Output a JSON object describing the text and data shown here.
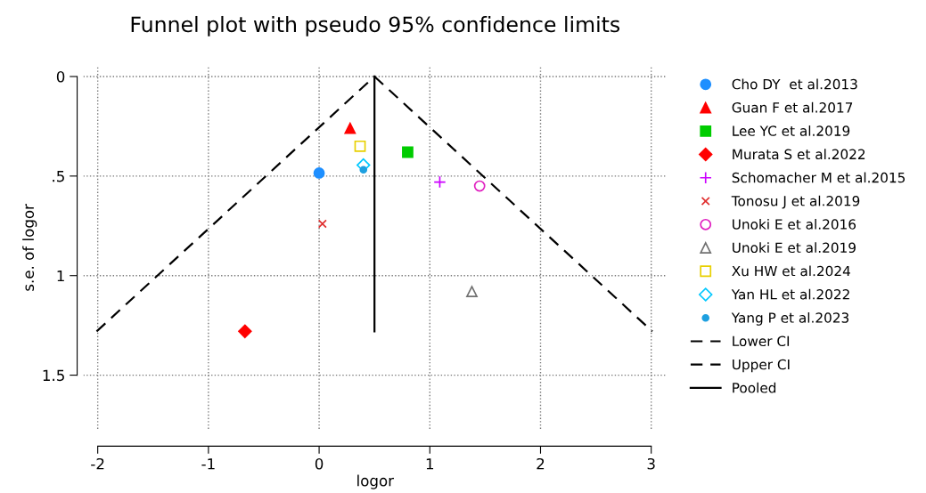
{
  "chart_data": {
    "type": "scatter",
    "title": "Funnel plot with pseudo 95% confidence limits",
    "xlabel": "logor",
    "ylabel": "s.e. of logor",
    "xlim": [
      -2.13,
      3.14
    ],
    "ylim": [
      1.77,
      -0.05
    ],
    "xticks": [
      -2,
      -1,
      0,
      1,
      2,
      3
    ],
    "yticks": [
      0,
      {
        "value": 0.5,
        "label": ".5"
      },
      1,
      1.5
    ],
    "grid": true,
    "legend": "right",
    "series": [
      {
        "name": "Cho DY  et al.2013",
        "color": "#1e8fff",
        "marker": "circle",
        "x": [
          0.0
        ],
        "values": [
          0.485
        ]
      },
      {
        "name": "Guan F et al.2017",
        "color": "#ff0000",
        "marker": "triangle",
        "x": [
          0.28
        ],
        "values": [
          0.26
        ]
      },
      {
        "name": "Lee YC et al.2019",
        "color": "#00cc00",
        "marker": "square",
        "x": [
          0.8
        ],
        "values": [
          0.38
        ]
      },
      {
        "name": "Murata S et al.2022",
        "color": "#ff0000",
        "marker": "diamond",
        "x": [
          -0.67
        ],
        "values": [
          1.28
        ]
      },
      {
        "name": "Schomacher M et al.2015",
        "color": "#cc00ff",
        "marker": "plus",
        "x": [
          1.09
        ],
        "values": [
          0.53
        ]
      },
      {
        "name": "Tonosu J et al.2019",
        "color": "#e03030",
        "marker": "cross",
        "x": [
          0.03
        ],
        "values": [
          0.74
        ]
      },
      {
        "name": "Unoki E et al.2016",
        "color": "#e020c0",
        "marker": "circle-open",
        "x": [
          1.45
        ],
        "values": [
          0.55
        ]
      },
      {
        "name": "Unoki E et al.2019",
        "color": "#707070",
        "marker": "triangle-open",
        "x": [
          1.38
        ],
        "values": [
          1.08
        ]
      },
      {
        "name": "Xu HW et al.2024",
        "color": "#e8d000",
        "marker": "square-open",
        "x": [
          0.37
        ],
        "values": [
          0.35
        ]
      },
      {
        "name": "Yan HL et al.2022",
        "color": "#00c8ff",
        "marker": "diamond-open",
        "x": [
          0.4
        ],
        "values": [
          0.445
        ]
      },
      {
        "name": "Yang P et al.2023",
        "color": "#1ea0e0",
        "marker": "dot",
        "x": [
          0.4
        ],
        "values": [
          0.468
        ]
      },
      {
        "name": "Lower CI",
        "type": "line",
        "color": "#000000",
        "line_style": "dashed",
        "x": [
          -2.01,
          0.5
        ],
        "values": [
          1.28,
          0
        ]
      },
      {
        "name": "Upper CI",
        "type": "line",
        "color": "#000000",
        "line_style": "dashed",
        "x": [
          0.5,
          3.01
        ],
        "values": [
          0,
          1.28
        ]
      },
      {
        "name": "Pooled",
        "type": "line",
        "color": "#000000",
        "line_style": "solid",
        "x": [
          0.5,
          0.5
        ],
        "values": [
          0,
          1.28
        ]
      }
    ]
  }
}
